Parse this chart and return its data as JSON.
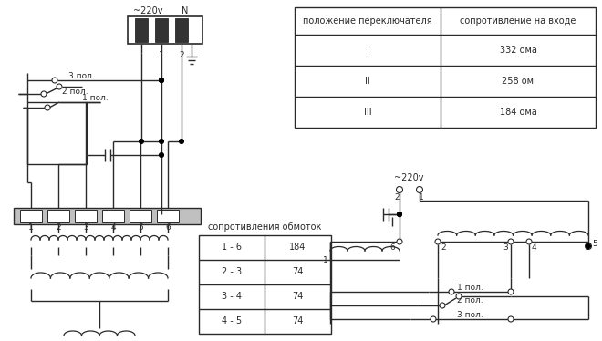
{
  "bg_color": "#ffffff",
  "line_color": "#2a2a2a",
  "table1_header": [
    "положение переключателя",
    "сопротивление на входе"
  ],
  "table1_rows": [
    [
      "I",
      "332 ома"
    ],
    [
      "II",
      "258 ом"
    ],
    [
      "III",
      "184 ома"
    ]
  ],
  "table2_title": "сопротивления обмоток",
  "table2_rows": [
    [
      "1 - 6",
      "184"
    ],
    [
      "2 - 3",
      "74"
    ],
    [
      "3 - 4",
      "74"
    ],
    [
      "4 - 5",
      "74"
    ]
  ],
  "voltage_label": "~220v",
  "neutral_label": "N",
  "font_size": 7,
  "font_size_small": 6.5
}
